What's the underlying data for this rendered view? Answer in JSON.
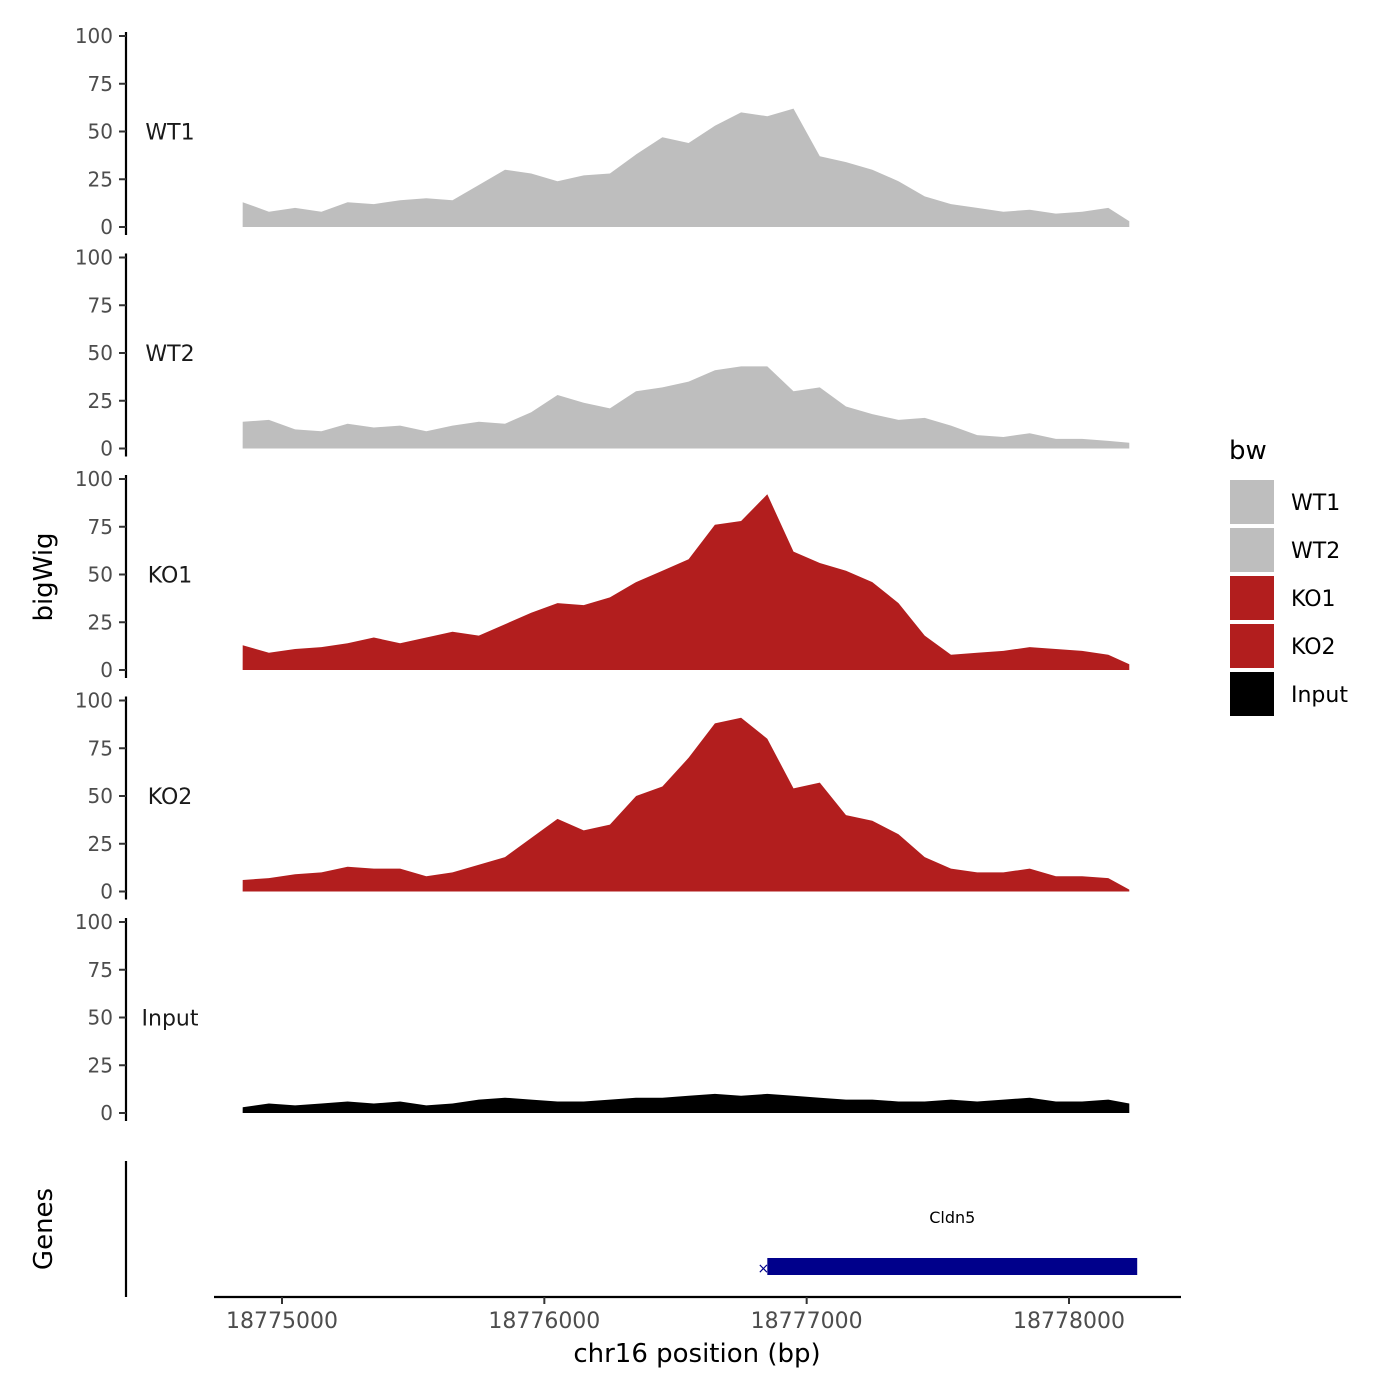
{
  "chart_data": {
    "type": "area",
    "title": "",
    "ylabel": "bigWig",
    "xlabel": "chr16 position (bp)",
    "genes_label": "Genes",
    "legend": {
      "title": "bw",
      "position": "right"
    },
    "x_range": [
      18774850,
      18778230
    ],
    "x_ticks": [
      18775000,
      18776000,
      18777000,
      18778000
    ],
    "x_tick_labels": [
      "18775000",
      "18776000",
      "18777000",
      "18778000"
    ],
    "y_range": [
      0,
      100
    ],
    "y_ticks": [
      0,
      25,
      50,
      75,
      100
    ],
    "y_tick_labels": [
      "0",
      "25",
      "50",
      "75",
      "100"
    ],
    "grid": false,
    "x": [
      18774850,
      18774950,
      18775050,
      18775150,
      18775250,
      18775350,
      18775450,
      18775550,
      18775650,
      18775750,
      18775850,
      18775950,
      18776050,
      18776150,
      18776250,
      18776350,
      18776450,
      18776550,
      18776650,
      18776750,
      18776850,
      18776950,
      18777050,
      18777150,
      18777250,
      18777350,
      18777450,
      18777550,
      18777650,
      18777750,
      18777850,
      18777950,
      18778050,
      18778150,
      18778230
    ],
    "series": [
      {
        "name": "WT1",
        "color": "#bebebe",
        "values": [
          13,
          8,
          10,
          8,
          13,
          12,
          14,
          15,
          14,
          22,
          30,
          28,
          24,
          27,
          28,
          38,
          47,
          44,
          53,
          60,
          58,
          62,
          37,
          34,
          30,
          24,
          16,
          12,
          10,
          8,
          9,
          7,
          8,
          10,
          3
        ]
      },
      {
        "name": "WT2",
        "color": "#bebebe",
        "values": [
          14,
          15,
          10,
          9,
          13,
          11,
          12,
          9,
          12,
          14,
          13,
          19,
          28,
          24,
          21,
          30,
          32,
          35,
          41,
          43,
          43,
          30,
          32,
          22,
          18,
          15,
          16,
          12,
          7,
          6,
          8,
          5,
          5,
          4,
          3
        ]
      },
      {
        "name": "KO1",
        "color": "#b21e1e",
        "values": [
          13,
          9,
          11,
          12,
          14,
          17,
          14,
          17,
          20,
          18,
          24,
          30,
          35,
          34,
          38,
          46,
          52,
          58,
          76,
          78,
          92,
          62,
          56,
          52,
          46,
          35,
          18,
          8,
          9,
          10,
          12,
          11,
          10,
          8,
          3
        ]
      },
      {
        "name": "KO2",
        "color": "#b21e1e",
        "values": [
          6,
          7,
          9,
          10,
          13,
          12,
          12,
          8,
          10,
          14,
          18,
          28,
          38,
          32,
          35,
          50,
          55,
          70,
          88,
          91,
          80,
          54,
          57,
          40,
          37,
          30,
          18,
          12,
          10,
          10,
          12,
          8,
          8,
          7,
          1
        ]
      },
      {
        "name": "Input",
        "color": "#000000",
        "values": [
          3,
          5,
          4,
          5,
          6,
          5,
          6,
          4,
          5,
          7,
          8,
          7,
          6,
          6,
          7,
          8,
          8,
          9,
          10,
          9,
          10,
          9,
          8,
          7,
          7,
          6,
          6,
          7,
          6,
          7,
          8,
          6,
          6,
          7,
          5
        ]
      }
    ],
    "genes": [
      {
        "name": "Cldn5",
        "start": 18776850,
        "end": 18778260,
        "color": "#00008b",
        "strand": "-"
      }
    ]
  }
}
